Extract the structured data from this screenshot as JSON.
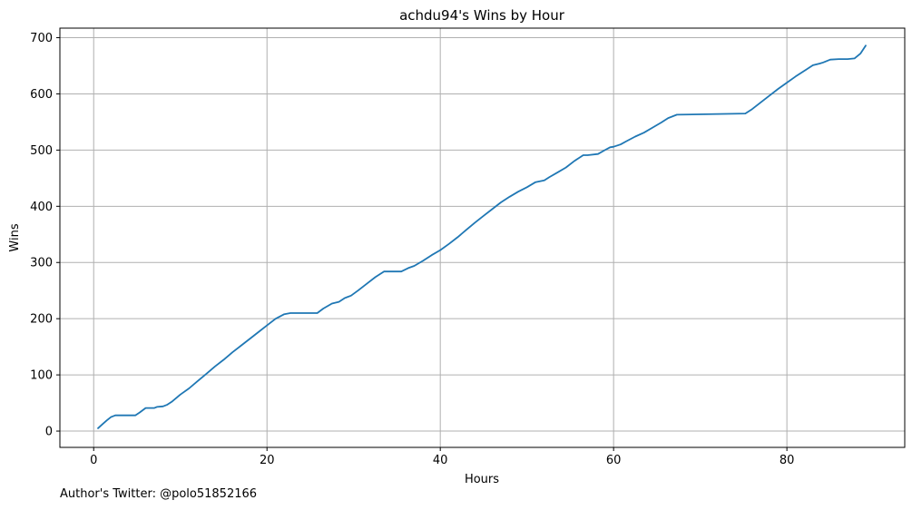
{
  "chart_data": {
    "type": "line",
    "title": "achdu94's Wins by Hour",
    "xlabel": "Hours",
    "ylabel": "Wins",
    "xlim": [
      -3.9,
      93.6
    ],
    "ylim": [
      -29,
      717
    ],
    "xticks": [
      0,
      20,
      40,
      60,
      80
    ],
    "yticks": [
      0,
      100,
      200,
      300,
      400,
      500,
      600,
      700
    ],
    "xtick_labels": [
      "0",
      "20",
      "40",
      "60",
      "80"
    ],
    "ytick_labels": [
      "0",
      "100",
      "200",
      "300",
      "400",
      "500",
      "600",
      "700"
    ],
    "grid": true,
    "line_color": "#1f77b4",
    "grid_color": "#b0b0b0",
    "series": [
      {
        "x": [
          0.5,
          1.0,
          1.5,
          2.0,
          2.5,
          3.0,
          4.0,
          4.8,
          5.3,
          6.0,
          7.0,
          7.3,
          8.0,
          8.5,
          9.0,
          10.0,
          11.0,
          12.0,
          13.0,
          14.0,
          15.0,
          16.0,
          17.0,
          18.0,
          19.0,
          20.0,
          21.0,
          22.0,
          22.7,
          23.0,
          24.0,
          25.0,
          25.8,
          26.5,
          27.5,
          28.3,
          29.0,
          29.7,
          30.5,
          31.5,
          32.5,
          33.5,
          34.5,
          35.5,
          36.3,
          37.0,
          38.0,
          39.0,
          40.0,
          41.0,
          42.0,
          43.0,
          44.0,
          45.0,
          46.0,
          47.0,
          48.0,
          49.0,
          50.0,
          51.0,
          52.0,
          52.6,
          53.5,
          54.5,
          55.5,
          56.5,
          57.0,
          58.2,
          59.0,
          59.6,
          60.0,
          60.8,
          61.5,
          62.5,
          63.5,
          64.5,
          65.5,
          66.3,
          67.3,
          75.2,
          76.0,
          77.0,
          78.0,
          79.0,
          80.0,
          81.0,
          82.0,
          83.0,
          83.8,
          84.2,
          85.0,
          86.0,
          87.0,
          87.8,
          88.5,
          89.1
        ],
        "y": [
          5,
          12,
          19,
          25,
          28,
          28,
          28,
          28,
          33,
          41,
          41,
          43,
          44,
          47,
          52,
          65,
          76,
          89,
          102,
          115,
          127,
          140,
          152,
          164,
          176,
          188,
          200,
          208,
          210,
          210,
          210,
          210,
          210,
          218,
          227,
          230,
          237,
          241,
          250,
          262,
          274,
          284,
          284,
          284,
          290,
          294,
          303,
          313,
          322,
          333,
          345,
          358,
          371,
          383,
          395,
          407,
          417,
          426,
          434,
          443,
          446,
          452,
          460,
          469,
          481,
          491,
          491,
          493,
          500,
          505,
          506,
          510,
          516,
          524,
          531,
          540,
          549,
          557,
          563,
          565,
          573,
          585,
          597,
          609,
          620,
          631,
          641,
          651,
          654,
          656,
          661,
          662,
          662,
          663,
          672,
          686
        ]
      }
    ]
  },
  "footer": {
    "text": "Author's Twitter: @polo51852166"
  }
}
